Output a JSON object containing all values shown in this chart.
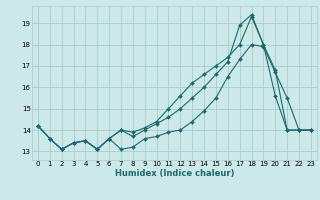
{
  "xlabel": "Humidex (Indice chaleur)",
  "bg_color": "#cce8e8",
  "grid_color": "#aacccc",
  "line_color": "#1a6b6b",
  "ylim": [
    12.6,
    19.8
  ],
  "xlim": [
    -0.5,
    23.5
  ],
  "yticks": [
    13,
    14,
    15,
    16,
    17,
    18,
    19
  ],
  "xticks": [
    0,
    1,
    2,
    3,
    4,
    5,
    6,
    7,
    8,
    9,
    10,
    11,
    12,
    13,
    14,
    15,
    16,
    17,
    18,
    19,
    20,
    21,
    22,
    23
  ],
  "series1_x": [
    0,
    1,
    2,
    3,
    4,
    5,
    6,
    7,
    8,
    9,
    10,
    11,
    12,
    13,
    14,
    15,
    16,
    17,
    18,
    19,
    20,
    21,
    22,
    23
  ],
  "series1_y": [
    14.2,
    13.6,
    13.1,
    13.4,
    13.5,
    13.1,
    13.6,
    13.1,
    13.2,
    13.6,
    13.7,
    13.9,
    14.0,
    14.4,
    14.9,
    15.5,
    16.5,
    17.3,
    18.0,
    17.9,
    16.7,
    15.5,
    14.0,
    14.0
  ],
  "series2_x": [
    0,
    1,
    2,
    3,
    4,
    5,
    6,
    7,
    8,
    9,
    10,
    11,
    12,
    13,
    14,
    15,
    16,
    17,
    18,
    19,
    20,
    21,
    22,
    23
  ],
  "series2_y": [
    14.2,
    13.6,
    13.1,
    13.4,
    13.5,
    13.1,
    13.6,
    14.0,
    13.9,
    14.1,
    14.4,
    15.0,
    15.6,
    16.2,
    16.6,
    17.0,
    17.4,
    18.0,
    19.3,
    18.0,
    15.6,
    14.0,
    14.0,
    14.0
  ],
  "series3_x": [
    0,
    1,
    2,
    3,
    4,
    5,
    6,
    7,
    8,
    9,
    10,
    11,
    12,
    13,
    14,
    15,
    16,
    17,
    18,
    19,
    20,
    21,
    22,
    23
  ],
  "series3_y": [
    14.2,
    13.6,
    13.1,
    13.4,
    13.5,
    13.1,
    13.6,
    14.0,
    13.7,
    14.0,
    14.3,
    14.6,
    15.0,
    15.5,
    16.0,
    16.6,
    17.2,
    18.9,
    19.4,
    18.0,
    16.8,
    14.0,
    14.0,
    14.0
  ],
  "marker": "D",
  "markersize": 2.0,
  "linewidth": 0.8,
  "tick_fontsize": 5.0,
  "xlabel_fontsize": 6.0
}
